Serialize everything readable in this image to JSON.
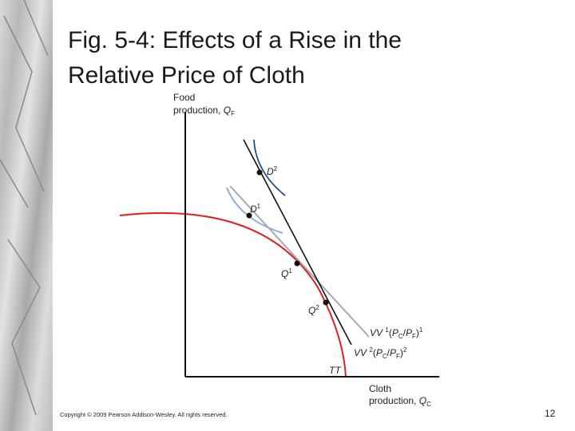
{
  "title": [
    "Fig. 5-4: Effects of a Rise in the",
    "Relative Price of Cloth"
  ],
  "figure": {
    "y_axis_label": {
      "line1": "Food",
      "line2": [
        {
          "t": "production, "
        },
        {
          "i": "Q"
        },
        {
          "sub": "F"
        }
      ]
    },
    "x_axis_label": {
      "line1": "Cloth",
      "line2": [
        {
          "t": "production, "
        },
        {
          "i": "Q"
        },
        {
          "sub": "C"
        }
      ]
    },
    "points": [
      [
        {
          "i": "D"
        },
        {
          "sup": "2"
        }
      ],
      [
        {
          "i": "D"
        },
        {
          "sup": "1"
        }
      ],
      [
        {
          "i": "Q"
        },
        {
          "sup": "1"
        }
      ],
      [
        {
          "i": "Q"
        },
        {
          "sup": "2"
        }
      ]
    ],
    "curves": [
      [
        {
          "i": "VV"
        },
        {
          "t": " "
        },
        {
          "sup": "1"
        },
        {
          "t": "("
        },
        {
          "i": "P"
        },
        {
          "sub": "C"
        },
        {
          "t": "/"
        },
        {
          "i": "P"
        },
        {
          "sub": "F"
        },
        {
          "t": ")"
        },
        {
          "sup": "1"
        }
      ],
      [
        {
          "i": "VV"
        },
        {
          "t": " "
        },
        {
          "sup": "2"
        },
        {
          "t": "("
        },
        {
          "i": "P"
        },
        {
          "sub": "C"
        },
        {
          "t": "/"
        },
        {
          "i": "P"
        },
        {
          "sub": "F"
        },
        {
          "t": ")"
        },
        {
          "sup": "2"
        }
      ],
      [
        {
          "i": "TT"
        }
      ]
    ]
  },
  "footer": {
    "copyright": "Copyright © 2009 Pearson Addison-Wesley. All rights reserved.",
    "page": "12"
  }
}
